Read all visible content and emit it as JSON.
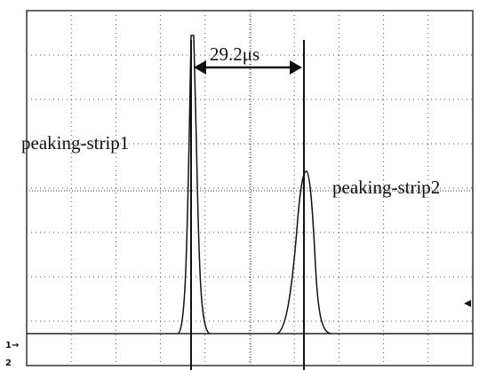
{
  "annotations": {
    "interval": "29.2μs",
    "pulse1": "peaking-strip1",
    "pulse2": "peaking-strip2"
  },
  "markers": {
    "channel1": "1→",
    "channel2": "2"
  }
}
